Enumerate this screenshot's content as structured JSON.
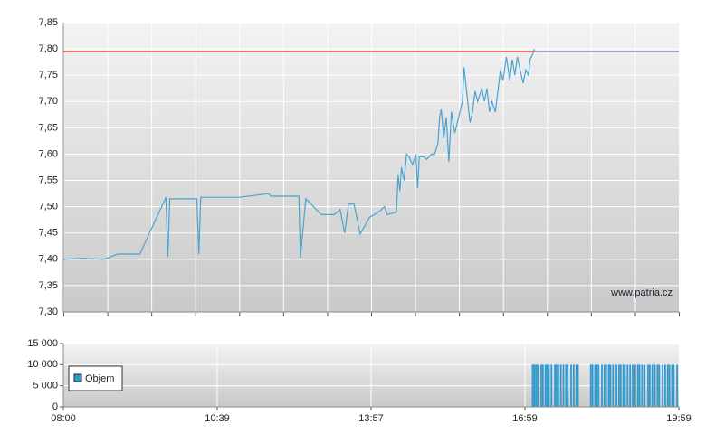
{
  "chart_data": [
    {
      "type": "line",
      "ylim": [
        7.3,
        7.85
      ],
      "yticks": [
        {
          "value": 7.3,
          "label": "7,30"
        },
        {
          "value": 7.35,
          "label": "7,35"
        },
        {
          "value": 7.4,
          "label": "7,40"
        },
        {
          "value": 7.45,
          "label": "7,45"
        },
        {
          "value": 7.5,
          "label": "7,50"
        },
        {
          "value": 7.55,
          "label": "7,55"
        },
        {
          "value": 7.6,
          "label": "7,60"
        },
        {
          "value": 7.65,
          "label": "7,65"
        },
        {
          "value": 7.7,
          "label": "7,70"
        },
        {
          "value": 7.75,
          "label": "7,75"
        },
        {
          "value": 7.8,
          "label": "7,80"
        },
        {
          "value": 7.85,
          "label": "7,85"
        }
      ],
      "annotation": "www.patria.cz",
      "series": [
        {
          "color": "#4aa3d0",
          "x": [
            "08:00",
            "08:19",
            "08:42",
            "08:56",
            "09:19",
            "09:46",
            "09:48",
            "09:50",
            "10:18",
            "10:20",
            "10:22",
            "11:08",
            "11:45",
            "11:48",
            "12:24",
            "12:26",
            "12:33",
            "12:53",
            "13:10",
            "13:17",
            "13:23",
            "13:28",
            "13:35",
            "13:43",
            "13:55",
            "14:06",
            "14:13",
            "14:16",
            "14:27",
            "14:29",
            "14:31",
            "14:33",
            "14:36",
            "14:39",
            "14:42",
            "14:46",
            "14:50",
            "14:52",
            "14:54",
            "14:59",
            "15:03",
            "15:08",
            "15:12",
            "15:16",
            "15:18",
            "15:20",
            "15:23",
            "15:26",
            "15:29",
            "15:32",
            "15:36",
            "15:39",
            "15:42",
            "15:45",
            "15:47",
            "15:50",
            "15:54",
            "15:57",
            "16:00",
            "16:03",
            "16:08",
            "16:11",
            "16:14",
            "16:17",
            "16:20",
            "16:24",
            "16:27",
            "16:30",
            "16:33",
            "16:37",
            "16:41",
            "16:44",
            "16:47",
            "16:50",
            "16:54",
            "16:57",
            "17:00",
            "17:03",
            "17:05",
            "17:08",
            "17:10"
          ],
          "values": [
            7.4,
            7.402,
            7.4,
            7.41,
            7.41,
            7.518,
            7.405,
            7.515,
            7.515,
            7.41,
            7.518,
            7.518,
            7.525,
            7.52,
            7.52,
            7.403,
            7.515,
            7.485,
            7.485,
            7.495,
            7.45,
            7.505,
            7.505,
            7.448,
            7.48,
            7.49,
            7.5,
            7.485,
            7.49,
            7.56,
            7.53,
            7.575,
            7.55,
            7.6,
            7.595,
            7.58,
            7.6,
            7.535,
            7.595,
            7.595,
            7.59,
            7.6,
            7.6,
            7.62,
            7.67,
            7.685,
            7.63,
            7.67,
            7.585,
            7.68,
            7.64,
            7.66,
            7.68,
            7.7,
            7.765,
            7.72,
            7.66,
            7.68,
            7.72,
            7.7,
            7.725,
            7.7,
            7.725,
            7.68,
            7.7,
            7.68,
            7.72,
            7.76,
            7.74,
            7.785,
            7.74,
            7.78,
            7.75,
            7.785,
            7.755,
            7.735,
            7.76,
            7.75,
            7.78,
            7.79,
            7.8
          ]
        },
        {
          "color": "#e8483c",
          "x": [
            "08:00",
            "17:10"
          ],
          "values": [
            7.795,
            7.795
          ]
        },
        {
          "color": "#7f8fb0",
          "x": [
            "17:10",
            "19:59"
          ],
          "values": [
            7.795,
            7.795
          ]
        }
      ]
    },
    {
      "type": "bar",
      "xlim": [
        "08:00",
        "19:59"
      ],
      "xticks": [
        "08:00",
        "10:39",
        "13:57",
        "16:59",
        "19:59"
      ],
      "ylim": [
        0,
        15000
      ],
      "yticks": [
        0,
        {
          "value": 5000,
          "label": "5 000"
        },
        {
          "value": 10000,
          "label": "10 000"
        },
        {
          "value": 15000,
          "label": "15 000"
        }
      ],
      "legend": "upper left",
      "x": [
        "17:08",
        "17:10",
        "17:12",
        "17:14",
        "17:18",
        "17:20",
        "17:23",
        "17:25",
        "17:27",
        "17:30",
        "17:34",
        "17:36",
        "17:38",
        "17:41",
        "17:44",
        "17:47",
        "17:49",
        "17:53",
        "17:56",
        "17:59",
        "18:01",
        "18:16",
        "18:18",
        "18:21",
        "18:23",
        "18:25",
        "18:29",
        "18:32",
        "18:34",
        "18:37",
        "18:39",
        "18:42",
        "18:46",
        "18:49",
        "18:51",
        "18:54",
        "18:56",
        "18:59",
        "19:02",
        "19:05",
        "19:08",
        "19:11",
        "19:13",
        "19:16",
        "19:19",
        "19:23",
        "19:25",
        "19:28",
        "19:31",
        "19:34",
        "19:36",
        "19:40",
        "19:43",
        "19:46",
        "19:48",
        "19:51",
        "19:53",
        "19:57"
      ],
      "series": [
        {
          "name": "Objem",
          "color": "#3399cc",
          "values": [
            10000,
            10000,
            10000,
            10000,
            10000,
            10000,
            10000,
            10000,
            10000,
            10000,
            10000,
            10000,
            10000,
            10000,
            10000,
            10000,
            10000,
            10000,
            10000,
            10000,
            10000,
            10000,
            10000,
            10000,
            10000,
            10000,
            10000,
            10000,
            10000,
            10000,
            10000,
            10000,
            10000,
            10000,
            10000,
            10000,
            10000,
            10000,
            10000,
            10000,
            10000,
            10000,
            10000,
            10000,
            10000,
            10000,
            10000,
            10000,
            10000,
            10000,
            10000,
            10000,
            10000,
            10000,
            10000,
            10000,
            10000,
            10000
          ]
        }
      ]
    }
  ]
}
